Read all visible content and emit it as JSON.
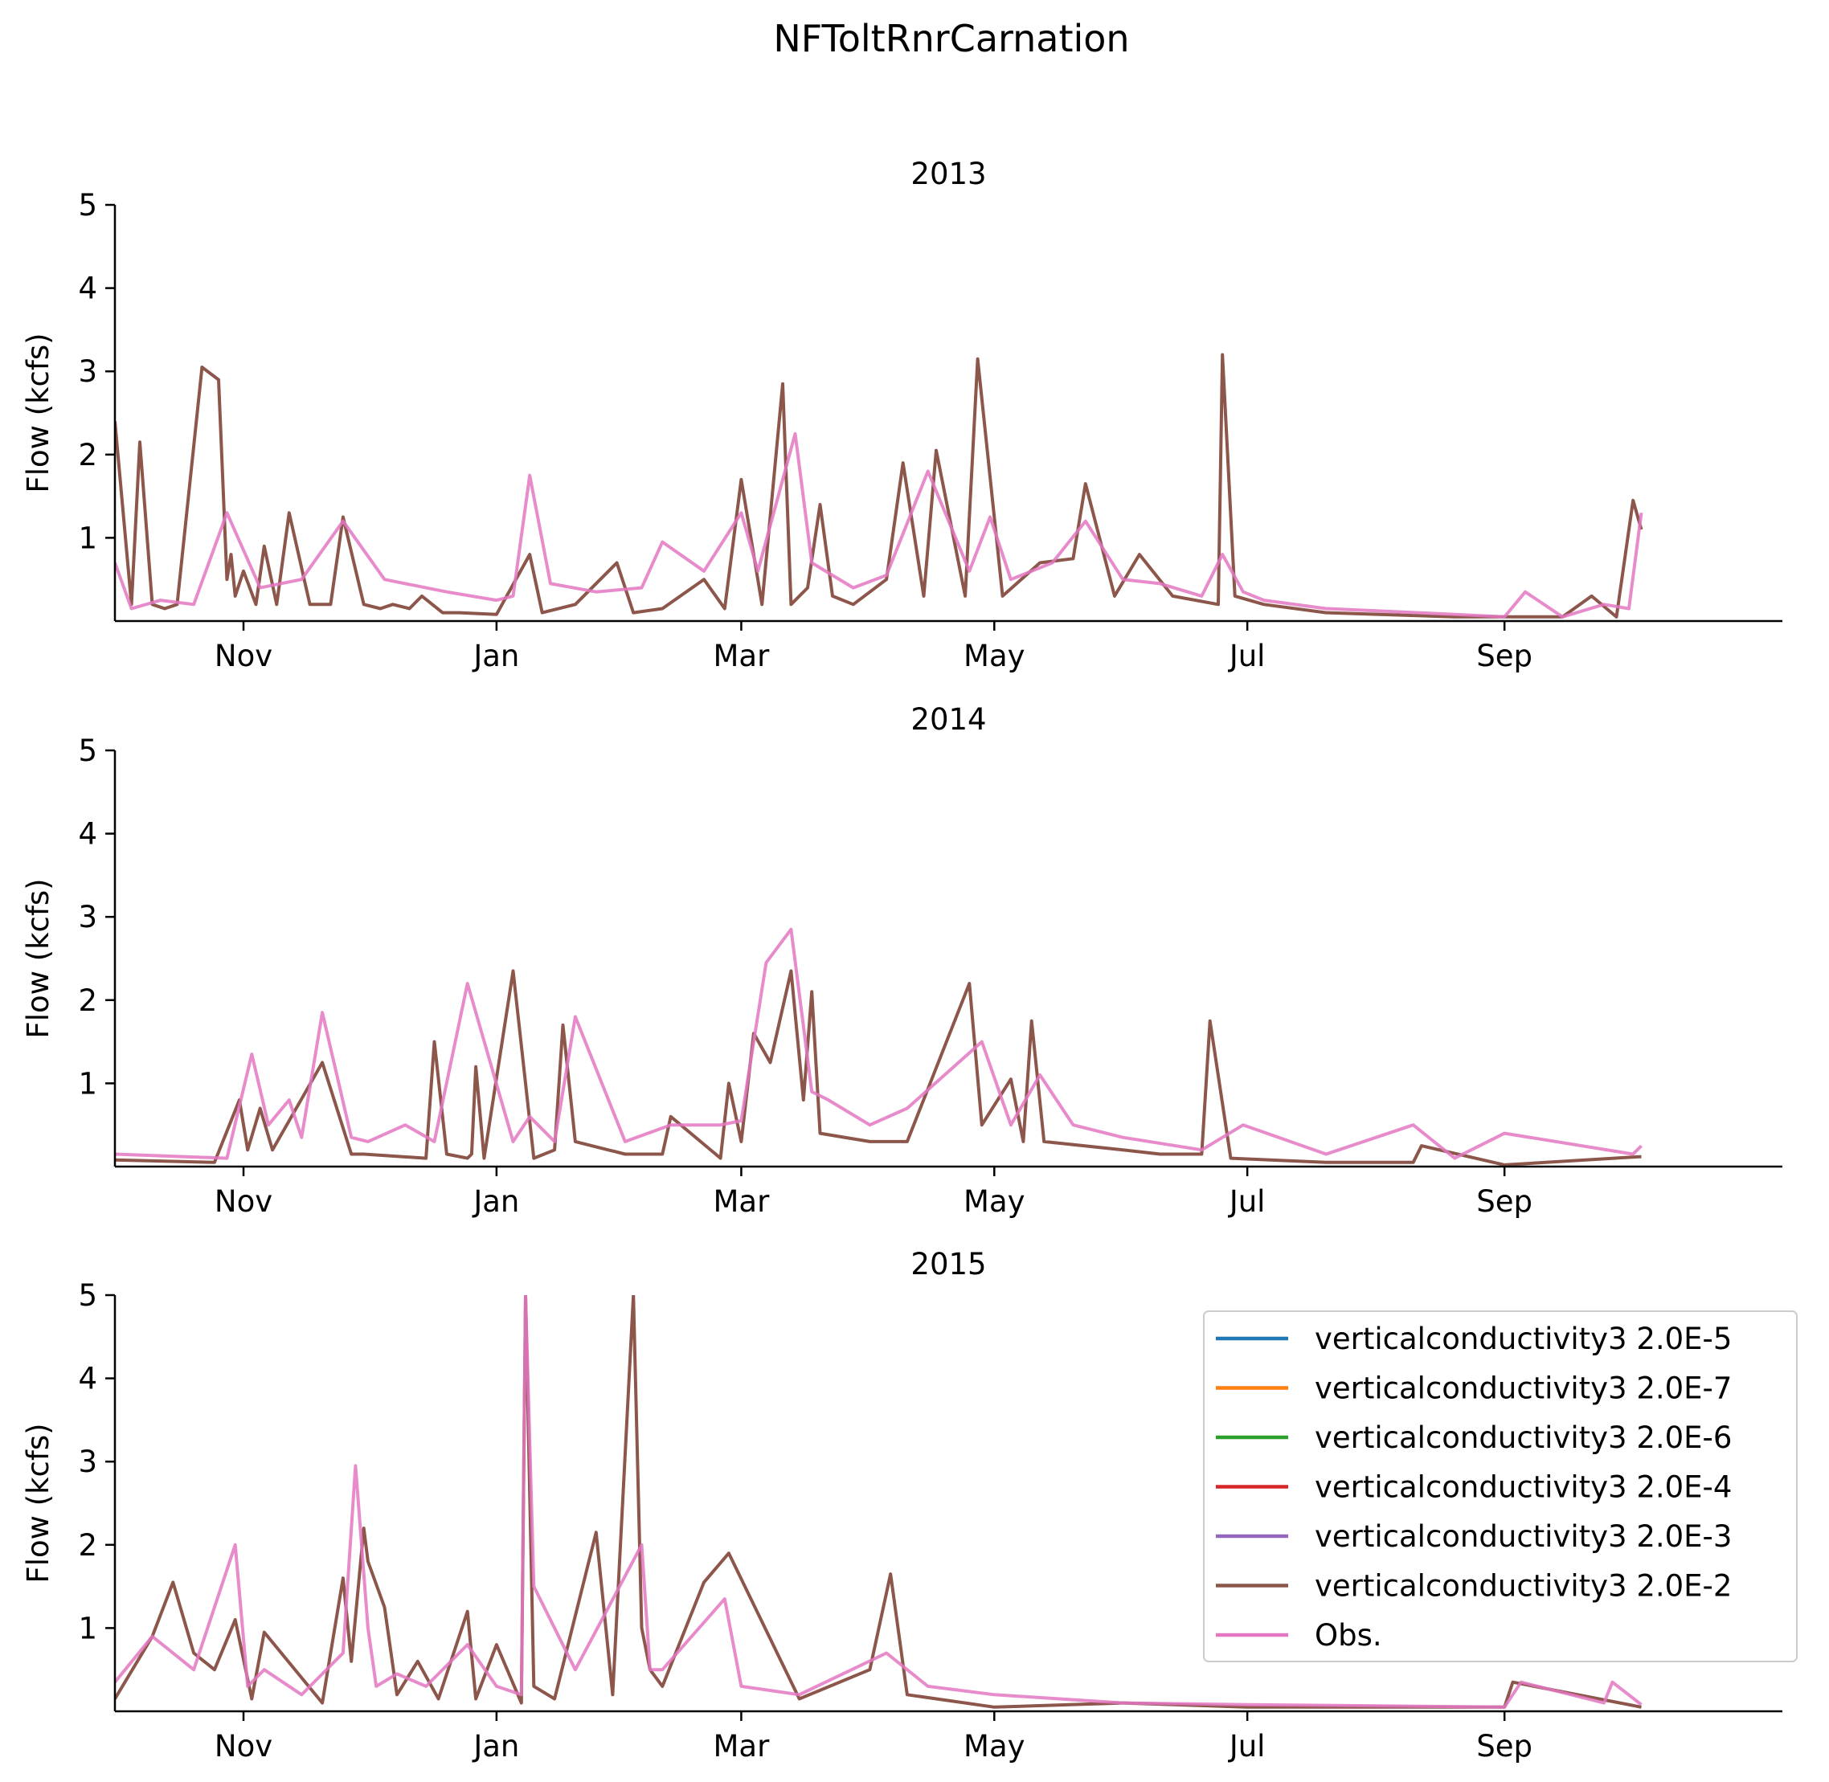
{
  "chart_data": {
    "type": "line",
    "title": "NFToltRnrCarnation",
    "ylabel": "Flow (kcfs)",
    "x_tick_labels": [
      "Nov",
      "Jan",
      "Mar",
      "May",
      "Jul",
      "Sep"
    ],
    "x_ticks": [
      "2000-11-01",
      "2001-01-01",
      "2001-03-01",
      "2001-05-01",
      "2001-07-01",
      "2001-09-01"
    ],
    "xlim": [
      "2000-10-01",
      "2001-11-07"
    ],
    "yticks": [
      1,
      2,
      3,
      4,
      5
    ],
    "ylim": [
      0,
      5
    ],
    "grid": false,
    "legend_position": "upper right of bottom panel",
    "legend": [
      {
        "label": "verticalconductivity3 2.0E-5",
        "color": "#1f77b4"
      },
      {
        "label": "verticalconductivity3 2.0E-7",
        "color": "#ff7f0e"
      },
      {
        "label": "verticalconductivity3 2.0E-6",
        "color": "#2ca02c"
      },
      {
        "label": "verticalconductivity3 2.0E-4",
        "color": "#d62728"
      },
      {
        "label": "verticalconductivity3 2.0E-3",
        "color": "#9467bd"
      },
      {
        "label": "verticalconductivity3 2.0E-2",
        "color": "#8c564b"
      },
      {
        "label": "Obs.",
        "color": "#e377c2"
      }
    ],
    "panels": [
      {
        "title": "2013",
        "series": [
          {
            "name": "verticalconductivity3 2.0E-2",
            "color": "#8c564b",
            "x": [
              "2000-10-01",
              "2000-10-05",
              "2000-10-07",
              "2000-10-10",
              "2000-10-13",
              "2000-10-16",
              "2000-10-22",
              "2000-10-26",
              "2000-10-28",
              "2000-10-29",
              "2000-10-30",
              "2000-11-01",
              "2000-11-04",
              "2000-11-06",
              "2000-11-09",
              "2000-11-12",
              "2000-11-17",
              "2000-11-22",
              "2000-11-25",
              "2000-11-30",
              "2000-12-04",
              "2000-12-07",
              "2000-12-11",
              "2000-12-14",
              "2000-12-19",
              "2000-12-23",
              "2001-01-01",
              "2001-01-09",
              "2001-01-12",
              "2001-01-20",
              "2001-01-30",
              "2001-02-03",
              "2001-02-10",
              "2001-02-20",
              "2001-02-25",
              "2001-03-01",
              "2001-03-06",
              "2001-03-11",
              "2001-03-13",
              "2001-03-17",
              "2001-03-20",
              "2001-03-23",
              "2001-03-28",
              "2001-04-05",
              "2001-04-09",
              "2001-04-14",
              "2001-04-17",
              "2001-04-24",
              "2001-04-27",
              "2001-05-03",
              "2001-05-12",
              "2001-05-20",
              "2001-05-23",
              "2001-05-30",
              "2001-06-05",
              "2001-06-13",
              "2001-06-24",
              "2001-06-25",
              "2001-06-28",
              "2001-07-05",
              "2001-07-20",
              "2001-08-20",
              "2001-09-05",
              "2001-09-15",
              "2001-09-22",
              "2001-09-28",
              "2001-10-02",
              "2001-10-04"
            ],
            "y": [
              2.4,
              0.2,
              2.15,
              0.2,
              0.15,
              0.2,
              3.05,
              2.9,
              0.5,
              0.8,
              0.3,
              0.6,
              0.2,
              0.9,
              0.2,
              1.3,
              0.2,
              0.2,
              1.25,
              0.2,
              0.15,
              0.2,
              0.15,
              0.3,
              0.1,
              0.1,
              0.08,
              0.8,
              0.1,
              0.2,
              0.7,
              0.1,
              0.15,
              0.5,
              0.15,
              1.7,
              0.2,
              2.85,
              0.2,
              0.4,
              1.4,
              0.3,
              0.2,
              0.5,
              1.9,
              0.3,
              2.05,
              0.3,
              3.15,
              0.3,
              0.7,
              0.75,
              1.65,
              0.3,
              0.8,
              0.3,
              0.2,
              3.2,
              0.3,
              0.2,
              0.1,
              0.05,
              0.05,
              0.05,
              0.3,
              0.05,
              1.45,
              1.1
            ]
          },
          {
            "name": "Obs.",
            "color": "#e377c2",
            "x": [
              "2000-10-01",
              "2000-10-05",
              "2000-10-12",
              "2000-10-20",
              "2000-10-28",
              "2000-11-05",
              "2000-11-15",
              "2000-11-25",
              "2000-12-05",
              "2000-12-10",
              "2000-12-20",
              "2001-01-01",
              "2001-01-05",
              "2001-01-09",
              "2001-01-14",
              "2001-01-25",
              "2001-02-05",
              "2001-02-10",
              "2001-02-20",
              "2001-03-01",
              "2001-03-05",
              "2001-03-14",
              "2001-03-18",
              "2001-03-28",
              "2001-04-05",
              "2001-04-15",
              "2001-04-25",
              "2001-04-30",
              "2001-05-05",
              "2001-05-15",
              "2001-05-23",
              "2001-06-01",
              "2001-06-10",
              "2001-06-20",
              "2001-06-25",
              "2001-06-30",
              "2001-07-05",
              "2001-07-20",
              "2001-08-20",
              "2001-09-01",
              "2001-09-06",
              "2001-09-15",
              "2001-09-25",
              "2001-10-01",
              "2001-10-04"
            ],
            "y": [
              0.7,
              0.15,
              0.25,
              0.2,
              1.3,
              0.4,
              0.5,
              1.2,
              0.5,
              0.45,
              0.35,
              0.25,
              0.3,
              1.75,
              0.45,
              0.35,
              0.4,
              0.95,
              0.6,
              1.3,
              0.6,
              2.25,
              0.7,
              0.4,
              0.55,
              1.8,
              0.6,
              1.25,
              0.5,
              0.7,
              1.2,
              0.5,
              0.45,
              0.3,
              0.8,
              0.35,
              0.25,
              0.15,
              0.08,
              0.05,
              0.35,
              0.05,
              0.2,
              0.15,
              1.3
            ]
          }
        ]
      },
      {
        "title": "2014",
        "series": [
          {
            "name": "verticalconductivity3 2.0E-2",
            "color": "#8c564b",
            "x": [
              "2000-10-01",
              "2000-10-25",
              "2000-10-31",
              "2000-11-02",
              "2000-11-05",
              "2000-11-08",
              "2000-11-20",
              "2000-11-27",
              "2000-11-30",
              "2000-12-15",
              "2000-12-17",
              "2000-12-20",
              "2000-12-25",
              "2000-12-26",
              "2000-12-27",
              "2000-12-29",
              "2001-01-05",
              "2001-01-10",
              "2001-01-15",
              "2001-01-17",
              "2001-01-20",
              "2001-02-01",
              "2001-02-10",
              "2001-02-12",
              "2001-02-24",
              "2001-02-26",
              "2001-03-01",
              "2001-03-04",
              "2001-03-08",
              "2001-03-13",
              "2001-03-16",
              "2001-03-18",
              "2001-03-20",
              "2001-04-01",
              "2001-04-10",
              "2001-04-25",
              "2001-04-28",
              "2001-05-05",
              "2001-05-08",
              "2001-05-10",
              "2001-05-13",
              "2001-06-01",
              "2001-06-10",
              "2001-06-20",
              "2001-06-22",
              "2001-06-27",
              "2001-07-20",
              "2001-08-10",
              "2001-08-12",
              "2001-09-01",
              "2001-10-04"
            ],
            "y": [
              0.08,
              0.05,
              0.8,
              0.2,
              0.7,
              0.2,
              1.25,
              0.15,
              0.15,
              0.1,
              1.5,
              0.15,
              0.1,
              0.15,
              1.2,
              0.1,
              2.35,
              0.1,
              0.2,
              1.7,
              0.3,
              0.15,
              0.15,
              0.6,
              0.1,
              1.0,
              0.3,
              1.6,
              1.25,
              2.35,
              0.8,
              2.1,
              0.4,
              0.3,
              0.3,
              2.2,
              0.5,
              1.05,
              0.3,
              1.75,
              0.3,
              0.2,
              0.15,
              0.15,
              1.75,
              0.1,
              0.05,
              0.05,
              0.25,
              0.02,
              0.12
            ]
          },
          {
            "name": "Obs.",
            "color": "#e377c2",
            "x": [
              "2000-10-01",
              "2000-10-28",
              "2000-11-03",
              "2000-11-07",
              "2000-11-12",
              "2000-11-15",
              "2000-11-20",
              "2000-11-27",
              "2000-12-01",
              "2000-12-10",
              "2000-12-17",
              "2000-12-25",
              "2001-01-05",
              "2001-01-09",
              "2001-01-15",
              "2001-01-20",
              "2001-02-01",
              "2001-02-12",
              "2001-02-24",
              "2001-03-01",
              "2001-03-07",
              "2001-03-13",
              "2001-03-18",
              "2001-03-22",
              "2001-04-01",
              "2001-04-10",
              "2001-04-28",
              "2001-05-05",
              "2001-05-12",
              "2001-05-20",
              "2001-06-01",
              "2001-06-20",
              "2001-06-30",
              "2001-07-20",
              "2001-08-10",
              "2001-08-20",
              "2001-09-01",
              "2001-10-02",
              "2001-10-04"
            ],
            "y": [
              0.15,
              0.1,
              1.35,
              0.5,
              0.8,
              0.35,
              1.85,
              0.35,
              0.3,
              0.5,
              0.3,
              2.2,
              0.3,
              0.6,
              0.3,
              1.8,
              0.3,
              0.5,
              0.5,
              0.55,
              2.45,
              2.85,
              0.9,
              0.8,
              0.5,
              0.7,
              1.5,
              0.5,
              1.1,
              0.5,
              0.35,
              0.2,
              0.5,
              0.15,
              0.5,
              0.1,
              0.4,
              0.15,
              0.25
            ]
          }
        ]
      },
      {
        "title": "2015",
        "series": [
          {
            "name": "verticalconductivity3 2.0E-2",
            "color": "#8c564b",
            "x": [
              "2000-10-01",
              "2000-10-10",
              "2000-10-15",
              "2000-10-20",
              "2000-10-25",
              "2000-10-30",
              "2000-11-03",
              "2000-11-06",
              "2000-11-20",
              "2000-11-25",
              "2000-11-27",
              "2000-11-30",
              "2000-12-01",
              "2000-12-05",
              "2000-12-08",
              "2000-12-13",
              "2000-12-18",
              "2000-12-25",
              "2000-12-27",
              "2001-01-01",
              "2001-01-07",
              "2001-01-08",
              "2001-01-10",
              "2001-01-15",
              "2001-01-25",
              "2001-01-29",
              "2001-02-03",
              "2001-02-05",
              "2001-02-07",
              "2001-02-10",
              "2001-02-20",
              "2001-02-26",
              "2001-03-15",
              "2001-04-01",
              "2001-04-06",
              "2001-04-10",
              "2001-05-01",
              "2001-06-01",
              "2001-07-01",
              "2001-09-01",
              "2001-09-03",
              "2001-10-04"
            ],
            "y": [
              0.15,
              0.9,
              1.55,
              0.7,
              0.5,
              1.1,
              0.15,
              0.95,
              0.1,
              1.6,
              0.6,
              2.2,
              1.8,
              1.25,
              0.2,
              0.6,
              0.15,
              1.2,
              0.15,
              0.8,
              0.1,
              5.0,
              0.3,
              0.15,
              2.15,
              0.2,
              5.0,
              1.0,
              0.5,
              0.3,
              1.55,
              1.9,
              0.15,
              0.5,
              1.65,
              0.2,
              0.05,
              0.1,
              0.05,
              0.05,
              0.35,
              0.05
            ]
          },
          {
            "name": "Obs.",
            "color": "#e377c2",
            "x": [
              "2000-10-01",
              "2000-10-10",
              "2000-10-20",
              "2000-10-30",
              "2000-11-02",
              "2000-11-06",
              "2000-11-15",
              "2000-11-25",
              "2000-11-28",
              "2000-12-01",
              "2000-12-03",
              "2000-12-08",
              "2000-12-15",
              "2000-12-25",
              "2001-01-01",
              "2001-01-07",
              "2001-01-08",
              "2001-01-10",
              "2001-01-20",
              "2001-02-05",
              "2001-02-07",
              "2001-02-10",
              "2001-02-25",
              "2001-03-01",
              "2001-03-15",
              "2001-04-05",
              "2001-04-15",
              "2001-05-01",
              "2001-06-01",
              "2001-07-01",
              "2001-09-01",
              "2001-09-05",
              "2001-09-25",
              "2001-09-27",
              "2001-10-04"
            ],
            "y": [
              0.35,
              0.9,
              0.5,
              2.0,
              0.3,
              0.5,
              0.2,
              0.7,
              2.95,
              1.0,
              0.3,
              0.45,
              0.3,
              0.8,
              0.3,
              0.2,
              5.0,
              1.5,
              0.5,
              2.0,
              0.5,
              0.5,
              1.35,
              0.3,
              0.2,
              0.7,
              0.3,
              0.2,
              0.1,
              0.08,
              0.05,
              0.35,
              0.1,
              0.35,
              0.08
            ]
          }
        ]
      }
    ]
  }
}
